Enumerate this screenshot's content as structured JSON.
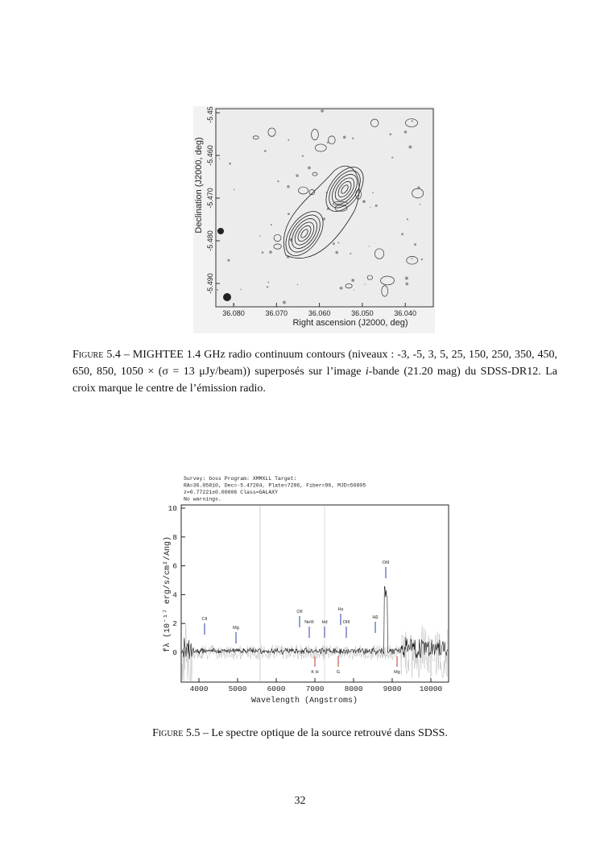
{
  "figures": [
    {
      "image": {
        "x_label": "Right ascension (J2000, deg)",
        "y_label": "Declination (J2000, deg)",
        "xticks": [
          "36.080",
          "36.070",
          "36.060",
          "36.050",
          "36.040"
        ],
        "yticks": [
          "-5.450",
          "-5.460",
          "-5.470",
          "-5.480",
          "-5.490"
        ]
      },
      "caption": {
        "label": "Figure 5.4",
        "parts": [
          "– MIGHTEE 1.4 GHz radio continuum contours (niveaux : -3, -5, 3, 5, 25, 150, 250, 350, 450, 650, 850, 1050 × (σ = 13 μJy/beam)) superposés sur l’image ",
          "i",
          "-bande (21.20 mag) du SDSS-DR12. La croix marque le centre de l’émission radio."
        ]
      }
    },
    {
      "image": {
        "header": [
          "Survey: boss Program: XMMXLL Target:",
          "RA=36.05810, Dec=-5.47204, Plate=7286, Fiber=96, MJD=56805",
          "z=0.77221±0.00006 Class=GALAXY",
          "No warnings."
        ],
        "x_label": "Wavelength (Angstroms)",
        "y_label": "fλ (10⁻¹⁷ erg/s/cm²/Ang)",
        "xticks": [
          "4000",
          "5000",
          "6000",
          "7000",
          "8000",
          "9000",
          "10000"
        ],
        "yticks": [
          "0",
          "2",
          "4",
          "6",
          "8",
          "10"
        ],
        "upper_lines": [
          "CII",
          "Mg",
          "OII",
          "NeIII",
          "Hd",
          "Hγ",
          "OIII",
          "Hβ",
          "OIII"
        ],
        "lower_lines": [
          "K H",
          "G",
          "Mg"
        ]
      },
      "caption": {
        "label": "Figure 5.5",
        "parts": [
          "– Le spectre optique de la source retrouvé dans SDSS."
        ]
      }
    }
  ],
  "page_number": "32"
}
